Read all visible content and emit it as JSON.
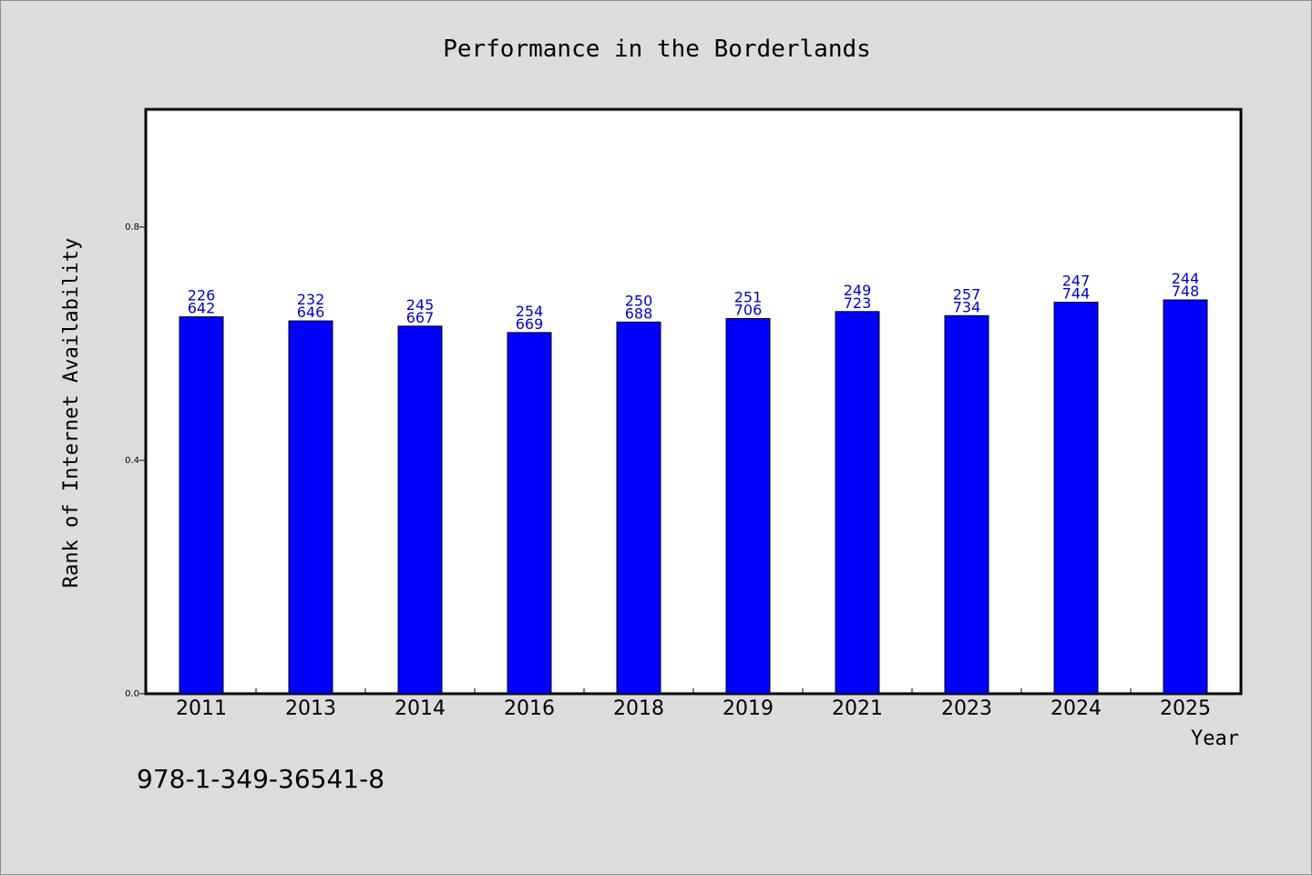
{
  "chart_data": {
    "type": "bar",
    "title": "Performance in the Borderlands",
    "xlabel": "Year",
    "ylabel": "Rank of Internet Availability",
    "ylim": [
      0,
      1.0
    ],
    "yticks": [
      "0.0",
      "0.4",
      "0.8"
    ],
    "categories": [
      "2011",
      "2013",
      "2014",
      "2016",
      "2018",
      "2019",
      "2021",
      "2023",
      "2024",
      "2025"
    ],
    "values": [
      0.646,
      0.639,
      0.63,
      0.619,
      0.637,
      0.643,
      0.655,
      0.648,
      0.671,
      0.675
    ],
    "labels_top": [
      "226",
      "232",
      "245",
      "254",
      "250",
      "251",
      "249",
      "257",
      "247",
      "244"
    ],
    "labels_bottom": [
      "642",
      "646",
      "667",
      "669",
      "688",
      "706",
      "723",
      "734",
      "744",
      "748"
    ],
    "bar_color": "#0000ff",
    "label_color": "#0000cc",
    "grid": false,
    "legend": "none"
  },
  "footnote": "978-1-349-36541-8"
}
